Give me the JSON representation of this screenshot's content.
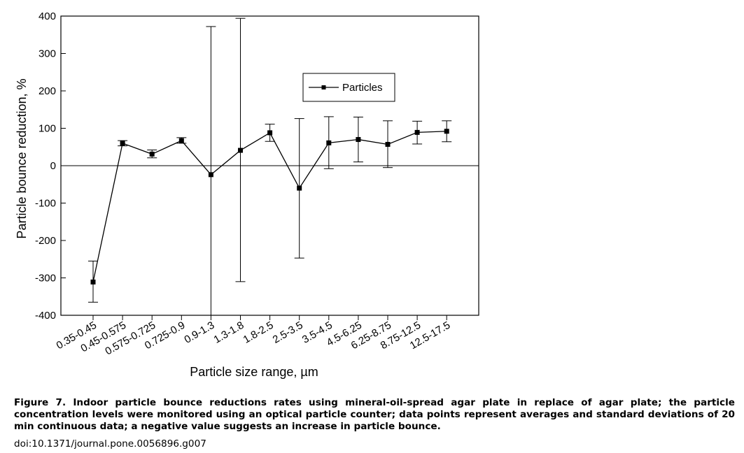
{
  "chart_data": {
    "type": "line",
    "xlabel": "Particle size range, µm",
    "ylabel": "Particle bounce reduction, %",
    "ylim": [
      -400,
      400
    ],
    "yticks": [
      400,
      300,
      200,
      100,
      0,
      -100,
      -200,
      -300,
      -400
    ],
    "categories": [
      "0.35-0.45",
      "0.45-0.575",
      "0.575-0.725",
      "0.725-0.9",
      "0.9-1.3",
      "1.3-1.8",
      "1.8-2.5",
      "2.5-3.5",
      "3.5-4.5",
      "4.5-6.25",
      "6.25-8.75",
      "8.75-12.5",
      "12.5-17.5"
    ],
    "series": [
      {
        "name": "Particles",
        "values": [
          -311,
          60,
          31,
          67,
          -24,
          41,
          88,
          -60,
          61,
          70,
          57,
          89,
          92
        ],
        "error_low": [
          -365,
          53,
          21,
          60,
          -400,
          -310,
          65,
          -247,
          -8,
          10,
          -5,
          58,
          64
        ],
        "error_high": [
          -255,
          67,
          42,
          75,
          372,
          394,
          111,
          126,
          131,
          130,
          120,
          119,
          120
        ]
      }
    ],
    "legend": "top-right",
    "grid": false,
    "zero_line": true
  },
  "caption": {
    "lead": "Figure 7. Indoor particle bounce reductions rates using mineral-oil-spread agar plate in replace of agar plate; the particle concentration levels were monitored using an optical particle counter; data points represent averages and standard deviations of 20 min continuous data; a negative value suggests an increase in particle bounce.",
    "doi": "doi:10.1371/journal.pone.0056896.g007"
  }
}
